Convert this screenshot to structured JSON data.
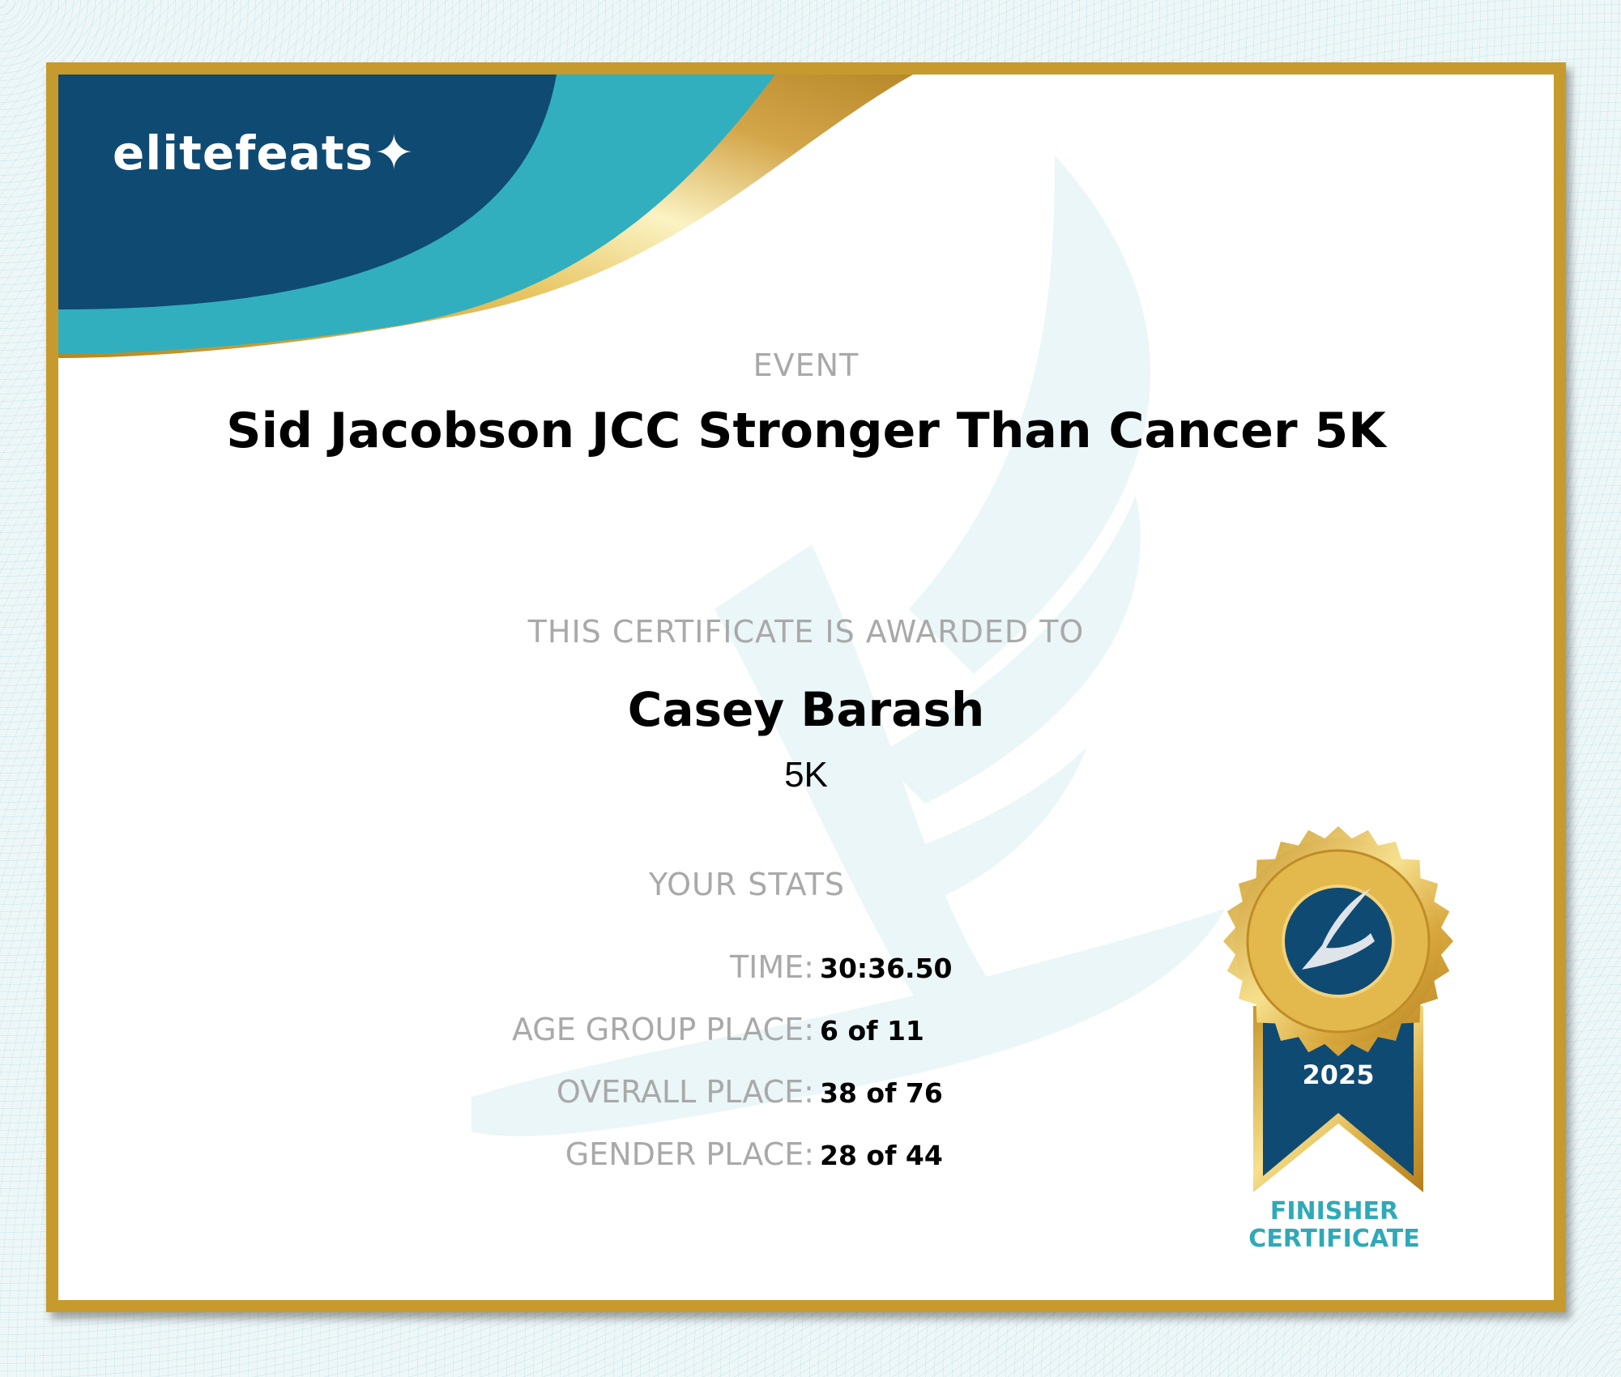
{
  "brand": {
    "logo_text": "elitefeats",
    "colors": {
      "navy": "#0f4a73",
      "teal": "#31afbf",
      "gold": "#c79a2d"
    }
  },
  "event": {
    "label": "EVENT",
    "name": "Sid Jacobson JCC Stronger Than Cancer 5K"
  },
  "award": {
    "label": "THIS CERTIFICATE IS AWARDED TO",
    "name": "Casey Barash",
    "distance": "5K"
  },
  "stats": {
    "title": "YOUR STATS",
    "rows": [
      {
        "label": "TIME:",
        "value": "30:36.50"
      },
      {
        "label": "AGE GROUP PLACE:",
        "value": "6 of 11"
      },
      {
        "label": "OVERALL PLACE:",
        "value": "38 of 76"
      },
      {
        "label": "GENDER PLACE:",
        "value": "28 of 44"
      }
    ]
  },
  "badge": {
    "year": "2025",
    "line1": "FINISHER",
    "line2": "CERTIFICATE",
    "icon": "winged-foot-icon"
  }
}
